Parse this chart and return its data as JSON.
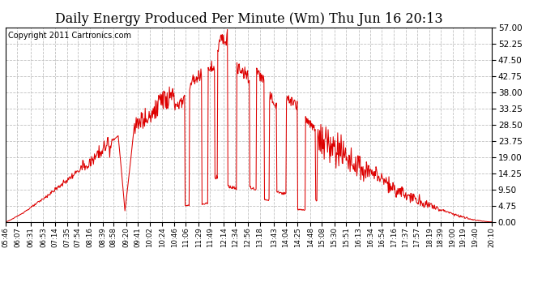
{
  "title": "Daily Energy Produced Per Minute (Wm) Thu Jun 16 20:13",
  "copyright": "Copyright 2011 Cartronics.com",
  "line_color": "#dd0000",
  "bg_color": "#ffffff",
  "plot_bg_color": "#ffffff",
  "grid_color": "#c0c0c0",
  "ylim": [
    0,
    57.0
  ],
  "yticks": [
    0.0,
    4.75,
    9.5,
    14.25,
    19.0,
    23.75,
    28.5,
    33.25,
    38.0,
    42.75,
    47.5,
    52.25,
    57.0
  ],
  "title_fontsize": 11.5,
  "copyright_fontsize": 7,
  "tick_labels": [
    "05:46",
    "06:07",
    "06:31",
    "06:53",
    "07:14",
    "07:35",
    "07:54",
    "08:16",
    "08:39",
    "08:58",
    "09:20",
    "09:41",
    "10:02",
    "10:24",
    "10:46",
    "11:06",
    "11:29",
    "11:49",
    "12:14",
    "12:34",
    "12:56",
    "13:18",
    "13:43",
    "14:04",
    "14:25",
    "14:48",
    "15:08",
    "15:30",
    "15:51",
    "16:13",
    "16:34",
    "16:54",
    "17:16",
    "17:37",
    "17:57",
    "18:19",
    "18:39",
    "19:00",
    "19:19",
    "19:40",
    "20:10"
  ]
}
